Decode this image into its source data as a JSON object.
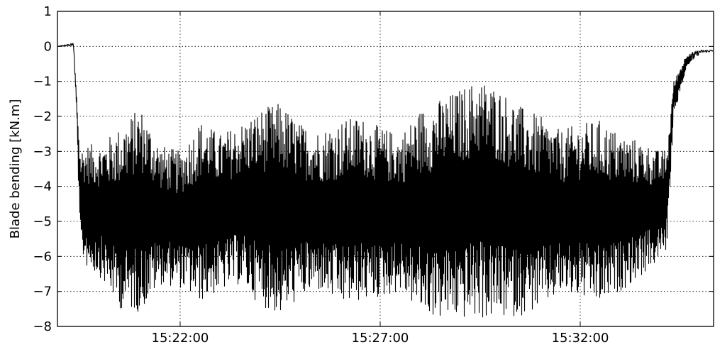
{
  "chart_data": {
    "type": "line",
    "title": "",
    "xlabel": "",
    "ylabel": "Blade bending [kN.m]",
    "ylim": [
      -8,
      1
    ],
    "yticks": [
      1,
      0,
      -1,
      -2,
      -3,
      -4,
      -5,
      -6,
      -7,
      -8
    ],
    "ytick_labels": [
      "1",
      "0",
      "−1",
      "−2",
      "−3",
      "−4",
      "−5",
      "−6",
      "−7",
      "−8"
    ],
    "xlim": [
      "15:18:56",
      "15:35:20"
    ],
    "xticks": [
      "15:22:00",
      "15:27:00",
      "15:32:00"
    ],
    "grid": true,
    "series": [
      {
        "color": "#000000",
        "envelope": {
          "x": [
            "15:18:56",
            "15:19:20",
            "15:19:25",
            "15:19:30",
            "15:19:40",
            "15:20:00",
            "15:20:30",
            "15:21:00",
            "15:21:30",
            "15:22:00",
            "15:22:30",
            "15:23:00",
            "15:23:30",
            "15:24:00",
            "15:24:30",
            "15:25:00",
            "15:25:30",
            "15:26:00",
            "15:26:30",
            "15:27:00",
            "15:27:30",
            "15:28:00",
            "15:28:30",
            "15:29:00",
            "15:29:30",
            "15:30:00",
            "15:30:30",
            "15:31:00",
            "15:31:30",
            "15:32:00",
            "15:32:30",
            "15:33:00",
            "15:33:30",
            "15:34:00",
            "15:34:10",
            "15:34:20",
            "15:34:40",
            "15:35:00",
            "15:35:20"
          ],
          "upper": [
            0.0,
            0.1,
            -1.5,
            -2.9,
            -2.8,
            -2.8,
            -2.3,
            -1.7,
            -2.8,
            -3.0,
            -2.1,
            -2.5,
            -2.2,
            -1.8,
            -1.6,
            -2.2,
            -2.4,
            -2.1,
            -2.0,
            -2.3,
            -2.5,
            -1.8,
            -1.5,
            -1.2,
            -0.9,
            -1.2,
            -1.7,
            -2.0,
            -2.4,
            -2.2,
            -2.1,
            -2.5,
            -2.7,
            -3.0,
            -2.9,
            -1.0,
            -0.2,
            -0.1,
            -0.1
          ],
          "lower": [
            0.0,
            0.0,
            -2.0,
            -5.9,
            -6.3,
            -6.6,
            -7.5,
            -7.6,
            -6.8,
            -6.9,
            -7.3,
            -7.0,
            -6.8,
            -7.4,
            -7.7,
            -7.2,
            -7.0,
            -7.4,
            -7.3,
            -7.2,
            -7.0,
            -7.6,
            -7.8,
            -7.8,
            -7.8,
            -7.8,
            -7.7,
            -7.5,
            -7.1,
            -7.2,
            -7.4,
            -7.0,
            -6.6,
            -6.1,
            -5.8,
            -2.0,
            -0.6,
            -0.2,
            -0.15
          ]
        }
      }
    ]
  }
}
